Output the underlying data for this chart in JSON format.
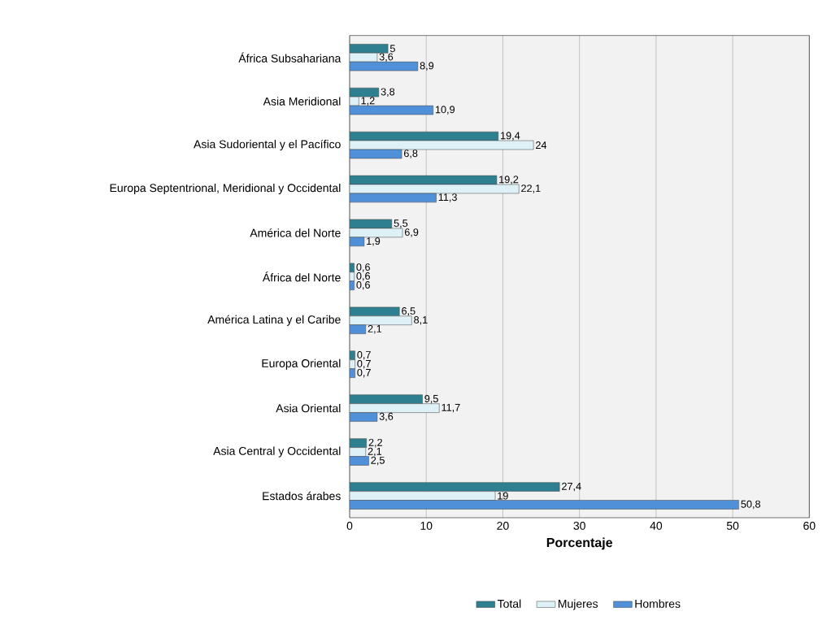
{
  "chart_data": {
    "type": "bar",
    "orientation": "horizontal",
    "xlabel": "Porcentaje",
    "categories": [
      "África Subsahariana",
      "Asia Meridional",
      "Asia Sudoriental y el Pacífico",
      "Europa Septentrional, Meridional y Occidental",
      "América del Norte",
      "África del Norte",
      "América Latina y el Caribe",
      "Europa Oriental",
      "Asia Oriental",
      "Asia Central y Occidental",
      "Estados árabes"
    ],
    "series": [
      {
        "name": "Total",
        "color": "#2e8090",
        "values": [
          5,
          3.8,
          19.4,
          19.2,
          5.5,
          0.6,
          6.5,
          0.7,
          9.5,
          2.2,
          27.4
        ],
        "value_labels": [
          "5",
          "3,8",
          "19,4",
          "19,2",
          "5,5",
          "0,6",
          "6,5",
          "0,7",
          "9,5",
          "2,2",
          "27,4"
        ]
      },
      {
        "name": "Mujeres",
        "color": "#ddf1f6",
        "values": [
          3.6,
          1.2,
          24,
          22.1,
          6.9,
          0.6,
          8.1,
          0.7,
          11.7,
          2.1,
          19
        ],
        "value_labels": [
          "3,6",
          "1,2",
          "24",
          "22,1",
          "6,9",
          "0,6",
          "8,1",
          "0,7",
          "11,7",
          "2,1",
          "19"
        ]
      },
      {
        "name": "Hombres",
        "color": "#4f90d8",
        "values": [
          8.9,
          10.9,
          6.8,
          11.3,
          1.9,
          0.6,
          2.1,
          0.7,
          3.6,
          2.5,
          50.8
        ],
        "value_labels": [
          "8,9",
          "10,9",
          "6,8",
          "11,3",
          "1,9",
          "0,6",
          "2,1",
          "0,7",
          "3,6",
          "2,5",
          "50,8"
        ]
      }
    ],
    "xlim": [
      0,
      60
    ],
    "xticks": [
      0,
      10,
      20,
      30,
      40,
      50,
      60
    ],
    "grid": "x",
    "legend": "bottom"
  }
}
